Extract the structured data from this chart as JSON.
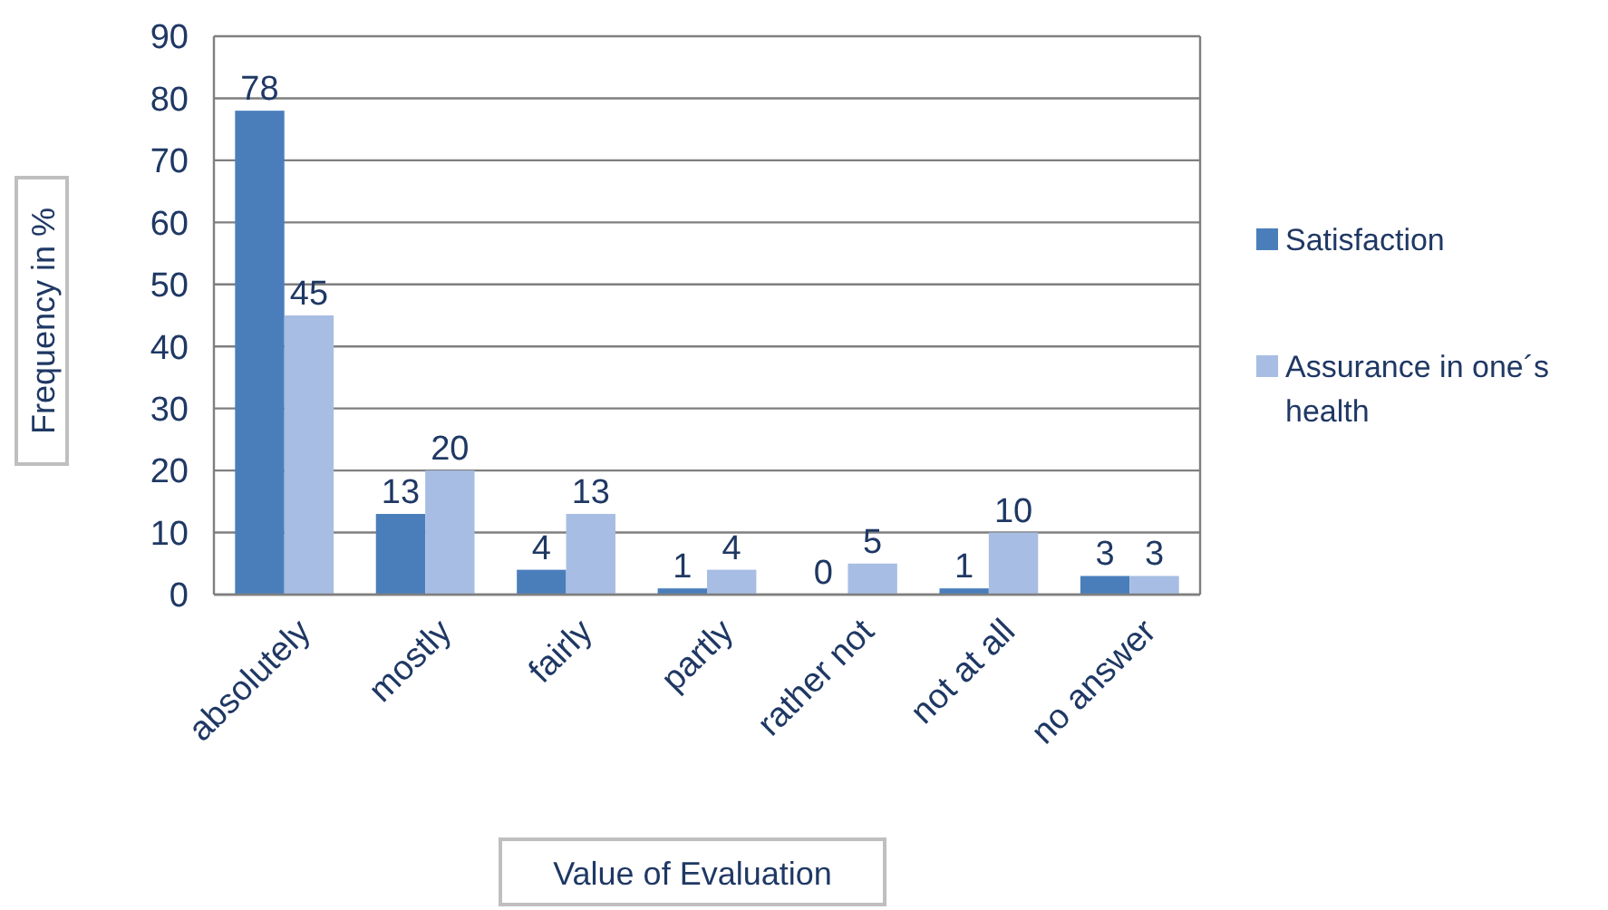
{
  "chart_data": {
    "type": "bar",
    "xlabel": "Value of Evaluation",
    "ylabel": "Frequency in %",
    "categories": [
      "absolutely",
      "mostly",
      "fairly",
      "partly",
      "rather not",
      "not at all",
      "no answer"
    ],
    "series": [
      {
        "name": "Satisfaction",
        "color": "#4a7ebb",
        "values": [
          78,
          13,
          4,
          1,
          0,
          1,
          3
        ]
      },
      {
        "name": "Assurance in one´s health",
        "color": "#a7bde3",
        "values": [
          45,
          20,
          13,
          4,
          5,
          10,
          3
        ]
      }
    ],
    "ylim": [
      0,
      90
    ],
    "yticks": [
      0,
      10,
      20,
      30,
      40,
      50,
      60,
      70,
      80,
      90
    ],
    "grid": "y",
    "legend": "right",
    "data_labels": true
  }
}
